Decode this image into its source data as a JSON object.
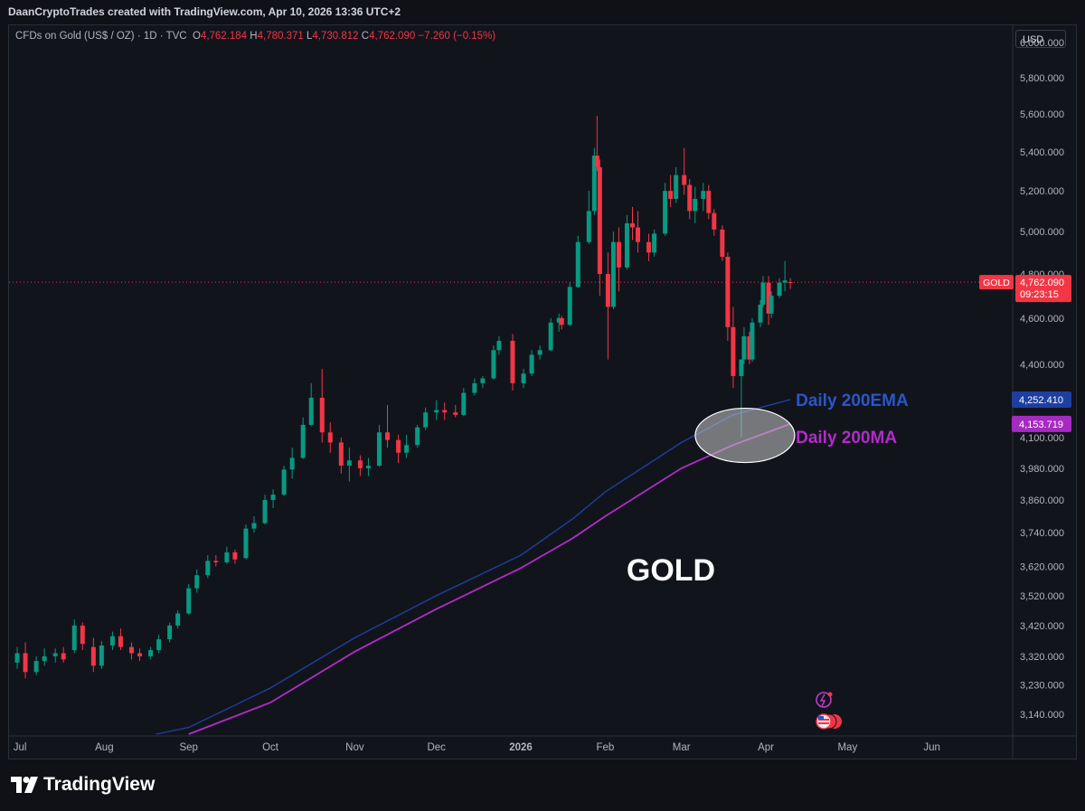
{
  "header": {
    "attribution": "DaanCryptoTrades created with TradingView.com, Apr 10, 2026 13:36 UTC+2"
  },
  "legend": {
    "symbol": "CFDs on Gold (US$ / OZ) · 1D · TVC",
    "open_label": "O",
    "open": "4,762.184",
    "high_label": "H",
    "high": "4,780.371",
    "low_label": "L",
    "low": "4,730.812",
    "close_label": "C",
    "close": "4,762.090",
    "change": "−7.260 (−0.15%)"
  },
  "currency": "USD",
  "price_tag": {
    "symbol": "GOLD",
    "price": "4,762.090",
    "countdown": "09:23:15"
  },
  "footer": {
    "brand": "TradingView"
  },
  "colors": {
    "up": "#089981",
    "down": "#f23645",
    "ema": "#1e3fa0",
    "ma": "#b02cc7",
    "background": "#12141c"
  },
  "chart_data": {
    "type": "candlestick",
    "title": "GOLD",
    "y_scale": "log",
    "ylim": [
      3080,
      6100
    ],
    "xlim": [
      "2025-06-27",
      "2026-06-30"
    ],
    "y_ticks": [
      {
        "v": 6000,
        "label": "6,000.000"
      },
      {
        "v": 5800,
        "label": "5,800.000"
      },
      {
        "v": 5600,
        "label": "5,600.000"
      },
      {
        "v": 5400,
        "label": "5,400.000"
      },
      {
        "v": 5200,
        "label": "5,200.000"
      },
      {
        "v": 5000,
        "label": "5,000.000"
      },
      {
        "v": 4800,
        "label": "4,800.000"
      },
      {
        "v": 4600,
        "label": "4,600.000"
      },
      {
        "v": 4400,
        "label": "4,400.000"
      },
      {
        "v": 4100,
        "label": "4,100.000"
      },
      {
        "v": 3980,
        "label": "3,980.000"
      },
      {
        "v": 3860,
        "label": "3,860.000"
      },
      {
        "v": 3740,
        "label": "3,740.000"
      },
      {
        "v": 3620,
        "label": "3,620.000"
      },
      {
        "v": 3520,
        "label": "3,520.000"
      },
      {
        "v": 3420,
        "label": "3,420.000"
      },
      {
        "v": 3320,
        "label": "3,320.000"
      },
      {
        "v": 3230,
        "label": "3,230.000"
      },
      {
        "v": 3140,
        "label": "3,140.000"
      }
    ],
    "x_ticks": [
      {
        "date": "2025-07-01",
        "label": "Jul"
      },
      {
        "date": "2025-08-01",
        "label": "Aug"
      },
      {
        "date": "2025-09-01",
        "label": "Sep"
      },
      {
        "date": "2025-10-01",
        "label": "Oct"
      },
      {
        "date": "2025-11-01",
        "label": "Nov"
      },
      {
        "date": "2025-12-01",
        "label": "Dec"
      },
      {
        "date": "2026-01-01",
        "label": "2026"
      },
      {
        "date": "2026-02-01",
        "label": "Feb"
      },
      {
        "date": "2026-03-01",
        "label": "Mar"
      },
      {
        "date": "2026-04-01",
        "label": "Apr"
      },
      {
        "date": "2026-05-01",
        "label": "May"
      },
      {
        "date": "2026-06-01",
        "label": "Jun"
      }
    ],
    "current_price": 4762.09,
    "candles": [
      {
        "date": "2025-06-30",
        "o": 3300,
        "h": 3350,
        "l": 3280,
        "c": 3330
      },
      {
        "date": "2025-07-03",
        "o": 3330,
        "h": 3365,
        "l": 3250,
        "c": 3270
      },
      {
        "date": "2025-07-07",
        "o": 3270,
        "h": 3320,
        "l": 3260,
        "c": 3305
      },
      {
        "date": "2025-07-10",
        "o": 3305,
        "h": 3345,
        "l": 3290,
        "c": 3320
      },
      {
        "date": "2025-07-14",
        "o": 3320,
        "h": 3345,
        "l": 3300,
        "c": 3330
      },
      {
        "date": "2025-07-17",
        "o": 3330,
        "h": 3350,
        "l": 3300,
        "c": 3310
      },
      {
        "date": "2025-07-21",
        "o": 3340,
        "h": 3440,
        "l": 3330,
        "c": 3420
      },
      {
        "date": "2025-07-24",
        "o": 3420,
        "h": 3430,
        "l": 3340,
        "c": 3360
      },
      {
        "date": "2025-07-28",
        "o": 3350,
        "h": 3380,
        "l": 3270,
        "c": 3290
      },
      {
        "date": "2025-07-31",
        "o": 3290,
        "h": 3370,
        "l": 3280,
        "c": 3355
      },
      {
        "date": "2025-08-04",
        "o": 3355,
        "h": 3400,
        "l": 3340,
        "c": 3385
      },
      {
        "date": "2025-08-07",
        "o": 3385,
        "h": 3410,
        "l": 3340,
        "c": 3350
      },
      {
        "date": "2025-08-11",
        "o": 3350,
        "h": 3365,
        "l": 3310,
        "c": 3330
      },
      {
        "date": "2025-08-14",
        "o": 3330,
        "h": 3345,
        "l": 3305,
        "c": 3320
      },
      {
        "date": "2025-08-18",
        "o": 3320,
        "h": 3350,
        "l": 3310,
        "c": 3340
      },
      {
        "date": "2025-08-21",
        "o": 3340,
        "h": 3390,
        "l": 3330,
        "c": 3375
      },
      {
        "date": "2025-08-25",
        "o": 3375,
        "h": 3430,
        "l": 3365,
        "c": 3420
      },
      {
        "date": "2025-08-28",
        "o": 3420,
        "h": 3470,
        "l": 3410,
        "c": 3460
      },
      {
        "date": "2025-09-01",
        "o": 3460,
        "h": 3560,
        "l": 3455,
        "c": 3545
      },
      {
        "date": "2025-09-04",
        "o": 3545,
        "h": 3610,
        "l": 3530,
        "c": 3590
      },
      {
        "date": "2025-09-08",
        "o": 3590,
        "h": 3660,
        "l": 3580,
        "c": 3640
      },
      {
        "date": "2025-09-11",
        "o": 3640,
        "h": 3660,
        "l": 3620,
        "c": 3635
      },
      {
        "date": "2025-09-15",
        "o": 3635,
        "h": 3690,
        "l": 3630,
        "c": 3670
      },
      {
        "date": "2025-09-18",
        "o": 3670,
        "h": 3680,
        "l": 3630,
        "c": 3645
      },
      {
        "date": "2025-09-22",
        "o": 3650,
        "h": 3770,
        "l": 3645,
        "c": 3755
      },
      {
        "date": "2025-09-25",
        "o": 3755,
        "h": 3800,
        "l": 3740,
        "c": 3775
      },
      {
        "date": "2025-09-29",
        "o": 3775,
        "h": 3880,
        "l": 3770,
        "c": 3860
      },
      {
        "date": "2025-10-02",
        "o": 3860,
        "h": 3900,
        "l": 3830,
        "c": 3880
      },
      {
        "date": "2025-10-06",
        "o": 3880,
        "h": 3990,
        "l": 3875,
        "c": 3975
      },
      {
        "date": "2025-10-09",
        "o": 3975,
        "h": 4060,
        "l": 3940,
        "c": 4020
      },
      {
        "date": "2025-10-13",
        "o": 4020,
        "h": 4180,
        "l": 4015,
        "c": 4150
      },
      {
        "date": "2025-10-16",
        "o": 4150,
        "h": 4320,
        "l": 4145,
        "c": 4260
      },
      {
        "date": "2025-10-20",
        "o": 4260,
        "h": 4380,
        "l": 4080,
        "c": 4120
      },
      {
        "date": "2025-10-23",
        "o": 4120,
        "h": 4160,
        "l": 4040,
        "c": 4080
      },
      {
        "date": "2025-10-27",
        "o": 4080,
        "h": 4100,
        "l": 3960,
        "c": 3990
      },
      {
        "date": "2025-10-30",
        "o": 3990,
        "h": 4060,
        "l": 3930,
        "c": 4010
      },
      {
        "date": "2025-11-03",
        "o": 4010,
        "h": 4030,
        "l": 3950,
        "c": 3980
      },
      {
        "date": "2025-11-06",
        "o": 3980,
        "h": 4020,
        "l": 3950,
        "c": 3990
      },
      {
        "date": "2025-11-10",
        "o": 3990,
        "h": 4150,
        "l": 3985,
        "c": 4120
      },
      {
        "date": "2025-11-13",
        "o": 4120,
        "h": 4230,
        "l": 4060,
        "c": 4090
      },
      {
        "date": "2025-11-17",
        "o": 4090,
        "h": 4110,
        "l": 4000,
        "c": 4040
      },
      {
        "date": "2025-11-20",
        "o": 4040,
        "h": 4110,
        "l": 4020,
        "c": 4070
      },
      {
        "date": "2025-11-24",
        "o": 4070,
        "h": 4150,
        "l": 4060,
        "c": 4140
      },
      {
        "date": "2025-11-27",
        "o": 4140,
        "h": 4220,
        "l": 4130,
        "c": 4200
      },
      {
        "date": "2025-12-01",
        "o": 4200,
        "h": 4250,
        "l": 4170,
        "c": 4210
      },
      {
        "date": "2025-12-04",
        "o": 4210,
        "h": 4240,
        "l": 4170,
        "c": 4200
      },
      {
        "date": "2025-12-08",
        "o": 4200,
        "h": 4230,
        "l": 4180,
        "c": 4190
      },
      {
        "date": "2025-12-11",
        "o": 4190,
        "h": 4300,
        "l": 4185,
        "c": 4280
      },
      {
        "date": "2025-12-15",
        "o": 4280,
        "h": 4340,
        "l": 4270,
        "c": 4320
      },
      {
        "date": "2025-12-18",
        "o": 4320,
        "h": 4350,
        "l": 4300,
        "c": 4340
      },
      {
        "date": "2025-12-22",
        "o": 4340,
        "h": 4480,
        "l": 4335,
        "c": 4460
      },
      {
        "date": "2025-12-24",
        "o": 4460,
        "h": 4520,
        "l": 4440,
        "c": 4500
      },
      {
        "date": "2025-12-29",
        "o": 4500,
        "h": 4530,
        "l": 4290,
        "c": 4320
      },
      {
        "date": "2026-01-02",
        "o": 4320,
        "h": 4380,
        "l": 4300,
        "c": 4360
      },
      {
        "date": "2026-01-05",
        "o": 4360,
        "h": 4460,
        "l": 4350,
        "c": 4440
      },
      {
        "date": "2026-01-08",
        "o": 4440,
        "h": 4480,
        "l": 4420,
        "c": 4460
      },
      {
        "date": "2026-01-12",
        "o": 4460,
        "h": 4600,
        "l": 4455,
        "c": 4580
      },
      {
        "date": "2026-01-15",
        "o": 4580,
        "h": 4620,
        "l": 4540,
        "c": 4600
      },
      {
        "date": "2026-01-16",
        "o": 4600,
        "h": 4610,
        "l": 4550,
        "c": 4570
      },
      {
        "date": "2026-01-19",
        "o": 4570,
        "h": 4760,
        "l": 4565,
        "c": 4740
      },
      {
        "date": "2026-01-22",
        "o": 4740,
        "h": 4980,
        "l": 4735,
        "c": 4950
      },
      {
        "date": "2026-01-26",
        "o": 4950,
        "h": 5200,
        "l": 4940,
        "c": 5100
      },
      {
        "date": "2026-01-28",
        "o": 5100,
        "h": 5420,
        "l": 5080,
        "c": 5380
      },
      {
        "date": "2026-01-29",
        "o": 5380,
        "h": 5590,
        "l": 5300,
        "c": 5320
      },
      {
        "date": "2026-01-30",
        "o": 5320,
        "h": 5360,
        "l": 4700,
        "c": 4800
      },
      {
        "date": "2026-02-02",
        "o": 4800,
        "h": 4900,
        "l": 4420,
        "c": 4650
      },
      {
        "date": "2026-02-04",
        "o": 4650,
        "h": 5000,
        "l": 4640,
        "c": 4950
      },
      {
        "date": "2026-02-06",
        "o": 4950,
        "h": 5020,
        "l": 4720,
        "c": 4830
      },
      {
        "date": "2026-02-09",
        "o": 4830,
        "h": 5080,
        "l": 4820,
        "c": 5040
      },
      {
        "date": "2026-02-11",
        "o": 5040,
        "h": 5120,
        "l": 4960,
        "c": 5020
      },
      {
        "date": "2026-02-13",
        "o": 5020,
        "h": 5100,
        "l": 4900,
        "c": 4950
      },
      {
        "date": "2026-02-17",
        "o": 4950,
        "h": 4990,
        "l": 4860,
        "c": 4900
      },
      {
        "date": "2026-02-19",
        "o": 4900,
        "h": 5010,
        "l": 4880,
        "c": 4990
      },
      {
        "date": "2026-02-23",
        "o": 4990,
        "h": 5240,
        "l": 4980,
        "c": 5200
      },
      {
        "date": "2026-02-25",
        "o": 5200,
        "h": 5280,
        "l": 5120,
        "c": 5160
      },
      {
        "date": "2026-02-27",
        "o": 5160,
        "h": 5320,
        "l": 5140,
        "c": 5280
      },
      {
        "date": "2026-03-02",
        "o": 5280,
        "h": 5420,
        "l": 5180,
        "c": 5230
      },
      {
        "date": "2026-03-04",
        "o": 5230,
        "h": 5260,
        "l": 5060,
        "c": 5100
      },
      {
        "date": "2026-03-06",
        "o": 5100,
        "h": 5220,
        "l": 5040,
        "c": 5160
      },
      {
        "date": "2026-03-09",
        "o": 5160,
        "h": 5240,
        "l": 5100,
        "c": 5200
      },
      {
        "date": "2026-03-11",
        "o": 5200,
        "h": 5230,
        "l": 5060,
        "c": 5090
      },
      {
        "date": "2026-03-13",
        "o": 5090,
        "h": 5110,
        "l": 4980,
        "c": 5010
      },
      {
        "date": "2026-03-16",
        "o": 5010,
        "h": 5030,
        "l": 4860,
        "c": 4880
      },
      {
        "date": "2026-03-18",
        "o": 4880,
        "h": 4900,
        "l": 4500,
        "c": 4560
      },
      {
        "date": "2026-03-20",
        "o": 4560,
        "h": 4650,
        "l": 4300,
        "c": 4350
      },
      {
        "date": "2026-03-23",
        "o": 4350,
        "h": 4400,
        "l": 4100,
        "c": 4420
      },
      {
        "date": "2026-03-24",
        "o": 4420,
        "h": 4560,
        "l": 4400,
        "c": 4520
      },
      {
        "date": "2026-03-26",
        "o": 4520,
        "h": 4540,
        "l": 4400,
        "c": 4420
      },
      {
        "date": "2026-03-27",
        "o": 4420,
        "h": 4600,
        "l": 4410,
        "c": 4580
      },
      {
        "date": "2026-03-30",
        "o": 4580,
        "h": 4680,
        "l": 4560,
        "c": 4660
      },
      {
        "date": "2026-03-31",
        "o": 4660,
        "h": 4790,
        "l": 4650,
        "c": 4760
      },
      {
        "date": "2026-04-02",
        "o": 4760,
        "h": 4790,
        "l": 4570,
        "c": 4620
      },
      {
        "date": "2026-04-03",
        "o": 4620,
        "h": 4720,
        "l": 4600,
        "c": 4700
      },
      {
        "date": "2026-04-06",
        "o": 4700,
        "h": 4780,
        "l": 4690,
        "c": 4760
      },
      {
        "date": "2026-04-08",
        "o": 4760,
        "h": 4860,
        "l": 4720,
        "c": 4770
      },
      {
        "date": "2026-04-10",
        "o": 4762.184,
        "h": 4780.371,
        "l": 4730.812,
        "c": 4762.09
      }
    ],
    "series": [
      {
        "name": "Daily 200EMA",
        "last_value": "4,252.410",
        "points": [
          {
            "date": "2025-08-20",
            "v": 3080
          },
          {
            "date": "2025-09-01",
            "v": 3100
          },
          {
            "date": "2025-10-01",
            "v": 3220
          },
          {
            "date": "2025-11-01",
            "v": 3380
          },
          {
            "date": "2025-12-01",
            "v": 3520
          },
          {
            "date": "2026-01-01",
            "v": 3660
          },
          {
            "date": "2026-01-20",
            "v": 3790
          },
          {
            "date": "2026-02-01",
            "v": 3890
          },
          {
            "date": "2026-03-01",
            "v": 4080
          },
          {
            "date": "2026-03-20",
            "v": 4190
          },
          {
            "date": "2026-04-10",
            "v": 4252.41
          }
        ]
      },
      {
        "name": "Daily 200MA",
        "last_value": "4,153.719",
        "points": [
          {
            "date": "2025-09-01",
            "v": 3080
          },
          {
            "date": "2025-10-01",
            "v": 3175
          },
          {
            "date": "2025-11-01",
            "v": 3335
          },
          {
            "date": "2025-12-01",
            "v": 3475
          },
          {
            "date": "2026-01-01",
            "v": 3615
          },
          {
            "date": "2026-01-20",
            "v": 3720
          },
          {
            "date": "2026-02-01",
            "v": 3800
          },
          {
            "date": "2026-03-01",
            "v": 3980
          },
          {
            "date": "2026-03-20",
            "v": 4070
          },
          {
            "date": "2026-04-10",
            "v": 4153.719
          }
        ]
      }
    ]
  }
}
